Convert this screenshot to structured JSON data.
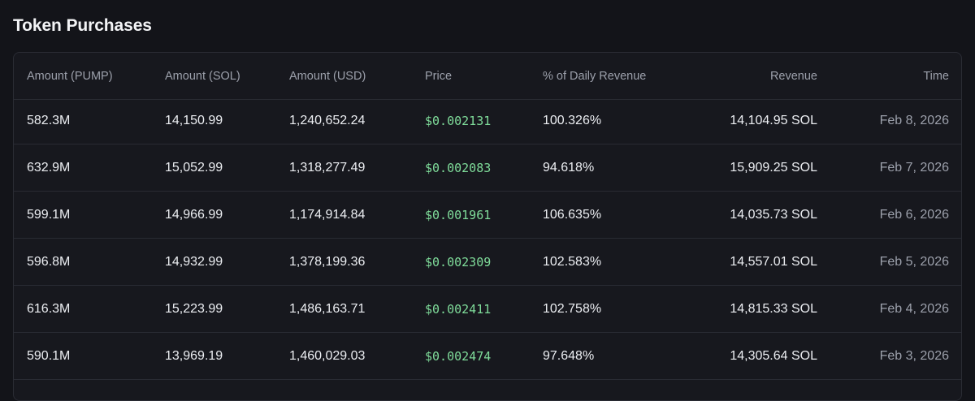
{
  "title": "Token Purchases",
  "colors": {
    "background": "#131419",
    "card": "#17181e",
    "border": "#2a2c34",
    "price": "#7fdc9a",
    "muted": "#9ca0ab",
    "text": "#eceef2"
  },
  "table": {
    "headers": {
      "amount_pump": "Amount (PUMP)",
      "amount_sol": "Amount (SOL)",
      "amount_usd": "Amount (USD)",
      "price": "Price",
      "pct_daily_revenue": "% of Daily Revenue",
      "revenue": "Revenue",
      "time": "Time"
    },
    "rows": [
      {
        "amount_pump": "582.3M",
        "amount_sol": "14,150.99",
        "amount_usd": "1,240,652.24",
        "price": "$0.002131",
        "pct_daily_revenue": "100.326%",
        "revenue": "14,104.95 SOL",
        "time": "Feb 8, 2026"
      },
      {
        "amount_pump": "632.9M",
        "amount_sol": "15,052.99",
        "amount_usd": "1,318,277.49",
        "price": "$0.002083",
        "pct_daily_revenue": "94.618%",
        "revenue": "15,909.25 SOL",
        "time": "Feb 7, 2026"
      },
      {
        "amount_pump": "599.1M",
        "amount_sol": "14,966.99",
        "amount_usd": "1,174,914.84",
        "price": "$0.001961",
        "pct_daily_revenue": "106.635%",
        "revenue": "14,035.73 SOL",
        "time": "Feb 6, 2026"
      },
      {
        "amount_pump": "596.8M",
        "amount_sol": "14,932.99",
        "amount_usd": "1,378,199.36",
        "price": "$0.002309",
        "pct_daily_revenue": "102.583%",
        "revenue": "14,557.01 SOL",
        "time": "Feb 5, 2026"
      },
      {
        "amount_pump": "616.3M",
        "amount_sol": "15,223.99",
        "amount_usd": "1,486,163.71",
        "price": "$0.002411",
        "pct_daily_revenue": "102.758%",
        "revenue": "14,815.33 SOL",
        "time": "Feb 4, 2026"
      },
      {
        "amount_pump": "590.1M",
        "amount_sol": "13,969.19",
        "amount_usd": "1,460,029.03",
        "price": "$0.002474",
        "pct_daily_revenue": "97.648%",
        "revenue": "14,305.64 SOL",
        "time": "Feb 3, 2026"
      }
    ]
  }
}
